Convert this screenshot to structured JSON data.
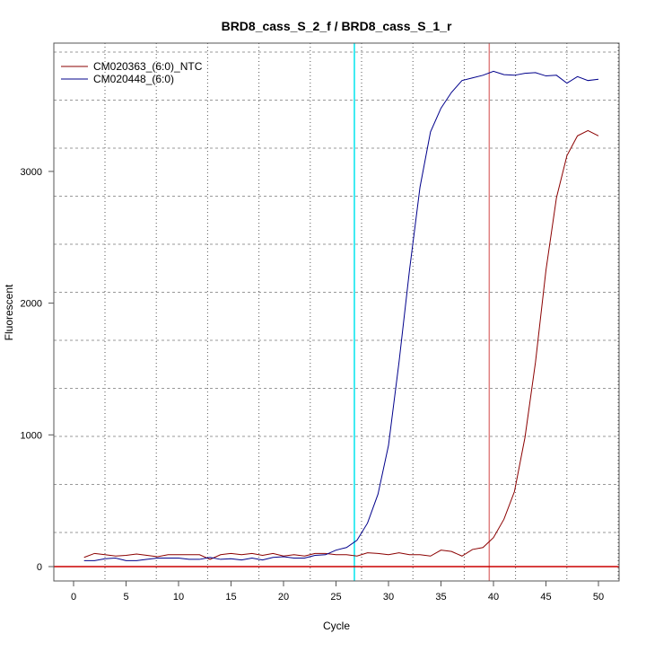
{
  "chart_data": {
    "type": "line",
    "title": "BRD8_cass_S_2_f / BRD8_cass_S_1_r",
    "xlabel": "Cycle",
    "ylabel": "Fluorescent",
    "xlim": [
      -2,
      52
    ],
    "ylim": [
      -110,
      4000
    ],
    "x_ticks": [
      0,
      5,
      10,
      15,
      20,
      25,
      30,
      35,
      40,
      45,
      50
    ],
    "y_ticks": [
      0,
      1000,
      2000,
      3000
    ],
    "grid": true,
    "legend_position": "top-left",
    "threshold_value": 0,
    "threshold_color": "#cc0000",
    "markers": [
      {
        "name": "cyan-cycle-marker",
        "x": 26.75,
        "color": "#00e5ee"
      },
      {
        "name": "red-cycle-marker",
        "x": 39.6,
        "color": "#e08080"
      }
    ],
    "x": [
      1,
      2,
      3,
      4,
      5,
      6,
      7,
      8,
      9,
      10,
      11,
      12,
      13,
      14,
      15,
      16,
      17,
      18,
      19,
      20,
      21,
      22,
      23,
      24,
      25,
      26,
      27,
      28,
      29,
      30,
      31,
      32,
      33,
      34,
      35,
      36,
      37,
      38,
      39,
      40,
      41,
      42,
      43,
      44,
      45,
      46,
      47,
      48,
      49,
      50
    ],
    "series": [
      {
        "name": "CM020363_(6:0)_NTC",
        "color": "#8b0000",
        "values": [
          70,
          100,
          90,
          80,
          85,
          95,
          85,
          75,
          90,
          90,
          90,
          90,
          55,
          90,
          100,
          90,
          100,
          85,
          100,
          80,
          90,
          80,
          100,
          100,
          90,
          90,
          80,
          105,
          100,
          90,
          105,
          90,
          90,
          80,
          125,
          115,
          80,
          130,
          145,
          220,
          360,
          570,
          980,
          1550,
          2250,
          2800,
          3120,
          3270,
          3310,
          3270
        ]
      },
      {
        "name": "CM020448_(6:0)",
        "color": "#00008b",
        "values": [
          45,
          45,
          60,
          65,
          45,
          45,
          55,
          65,
          65,
          65,
          55,
          55,
          70,
          55,
          60,
          50,
          65,
          50,
          70,
          75,
          65,
          65,
          85,
          90,
          125,
          145,
          200,
          330,
          550,
          920,
          1550,
          2250,
          2880,
          3300,
          3480,
          3600,
          3690,
          3710,
          3730,
          3760,
          3735,
          3730,
          3745,
          3750,
          3725,
          3730,
          3670,
          3720,
          3690,
          3700
        ]
      }
    ]
  }
}
